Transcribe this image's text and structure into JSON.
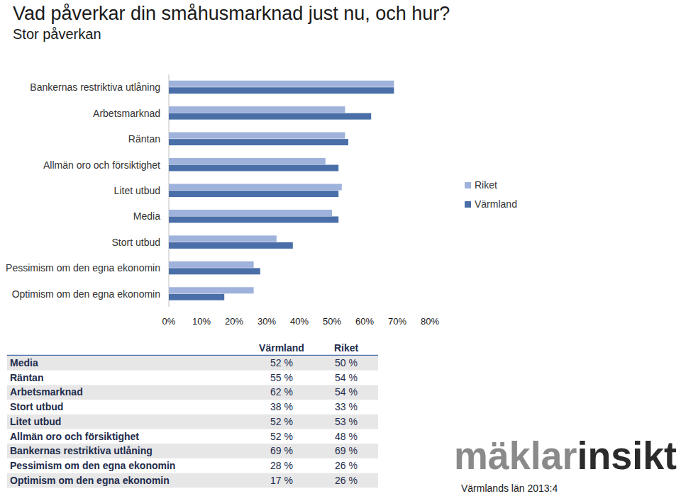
{
  "chart_data": {
    "type": "bar",
    "orientation": "horizontal",
    "title": "Vad påverkar din småhusmarknad just nu, och hur?",
    "subtitle": "Stor påverkan",
    "categories": [
      "Bankernas restriktiva utlåning",
      "Arbetsmarknad",
      "Räntan",
      "Allmän oro och försiktighet",
      "Litet utbud",
      "Media",
      "Stort utbud",
      "Pessimism om den egna ekonomin",
      "Optimism om den egna ekonomin"
    ],
    "series": [
      {
        "name": "Riket",
        "color": "#9fb2dc",
        "values": [
          69,
          54,
          54,
          48,
          53,
          50,
          33,
          26,
          26
        ]
      },
      {
        "name": "Värmland",
        "color": "#4a6fa8",
        "values": [
          69,
          62,
          55,
          52,
          52,
          52,
          38,
          28,
          17
        ]
      }
    ],
    "xlim": [
      0,
      80
    ],
    "xticks": [
      {
        "value": 0,
        "label": "0%"
      },
      {
        "value": 10,
        "label": "10%"
      },
      {
        "value": 20,
        "label": "20%"
      },
      {
        "value": 30,
        "label": "30%"
      },
      {
        "value": 40,
        "label": "40%"
      },
      {
        "value": 50,
        "label": "50%"
      },
      {
        "value": 60,
        "label": "60%"
      },
      {
        "value": 70,
        "label": "70%"
      },
      {
        "value": 80,
        "label": "80%"
      }
    ],
    "grid": false,
    "legend": "right"
  },
  "table": {
    "columns": [
      "Värmland",
      "Riket"
    ],
    "rows": [
      [
        "Media",
        "52 %",
        "50 %"
      ],
      [
        "Räntan",
        "55 %",
        "54 %"
      ],
      [
        "Arbetsmarknad",
        "62 %",
        "54 %"
      ],
      [
        "Stort utbud",
        "38 %",
        "33 %"
      ],
      [
        "Litet utbud",
        "52 %",
        "53 %"
      ],
      [
        "Allmän oro och försiktighet",
        "52 %",
        "48 %"
      ],
      [
        "Bankernas restriktiva utlåning",
        "69 %",
        "69 %"
      ],
      [
        "Pessimism om den egna ekonomin",
        "28 %",
        "26 %"
      ],
      [
        "Optimism om den egna ekonomin",
        "17 %",
        "26 %"
      ]
    ]
  },
  "logo": [
    "mäklar",
    "insikt"
  ],
  "footer": "Värmlands län 2013:4"
}
